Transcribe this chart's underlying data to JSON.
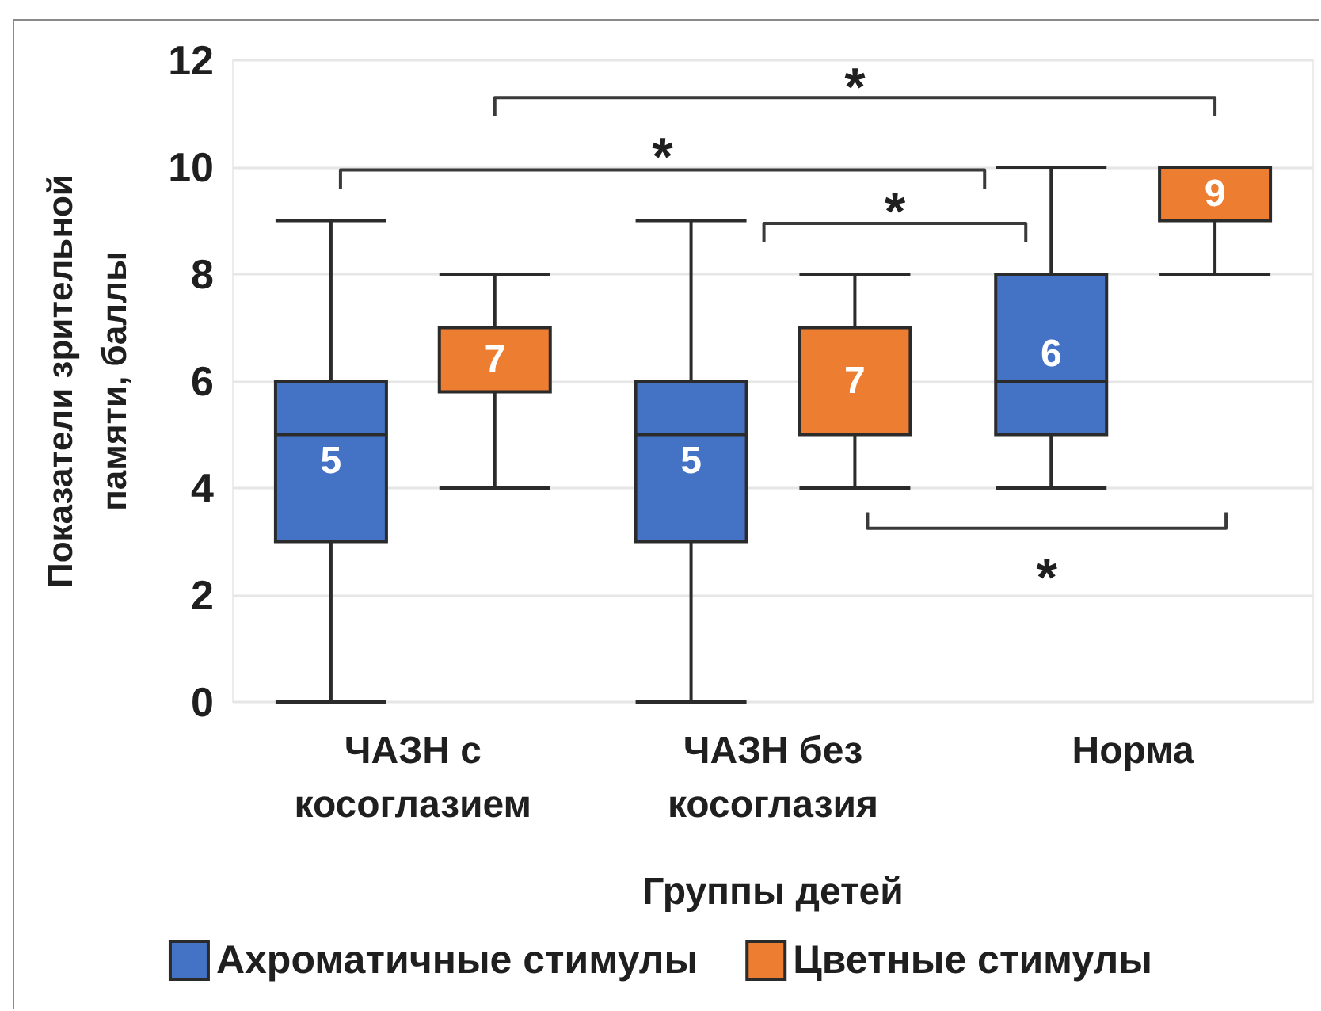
{
  "chart_data": {
    "type": "box",
    "xlabel": "Группы детей",
    "ylabel": "Показатели зрительной памяти, баллы",
    "categories": [
      "ЧАЗН с косоглазием",
      "ЧАЗН без косоглазия",
      "Норма"
    ],
    "series": [
      {
        "name": "Ахроматичные стимулы",
        "color": "#4472c4",
        "boxes": [
          {
            "low": 0,
            "q1": 3,
            "median": 5,
            "q3": 6,
            "high": 9
          },
          {
            "low": 0,
            "q1": 3,
            "median": 5,
            "q3": 6,
            "high": 9
          },
          {
            "low": 4,
            "q1": 5,
            "median": 6,
            "q3": 8,
            "high": 10
          }
        ],
        "value_labels": [
          "5",
          "5",
          "6"
        ]
      },
      {
        "name": "Цветные стимулы",
        "color": "#ed7d31",
        "boxes": [
          {
            "low": 4,
            "q1": 5.8,
            "median": 7,
            "q3": 7,
            "high": 8
          },
          {
            "low": 4,
            "q1": 5,
            "median": 7,
            "q3": 7,
            "high": 8
          },
          {
            "low": 8,
            "q1": 9,
            "median": 9,
            "q3": 10,
            "high": 10
          }
        ],
        "value_labels": [
          "7",
          "7",
          "9"
        ]
      }
    ],
    "ylim": [
      0,
      12
    ],
    "yticks": [
      0,
      2,
      4,
      6,
      8,
      10,
      12
    ],
    "grid": "y",
    "legend": "bottom",
    "annotations": [
      "*",
      "*",
      "*",
      "*"
    ]
  }
}
